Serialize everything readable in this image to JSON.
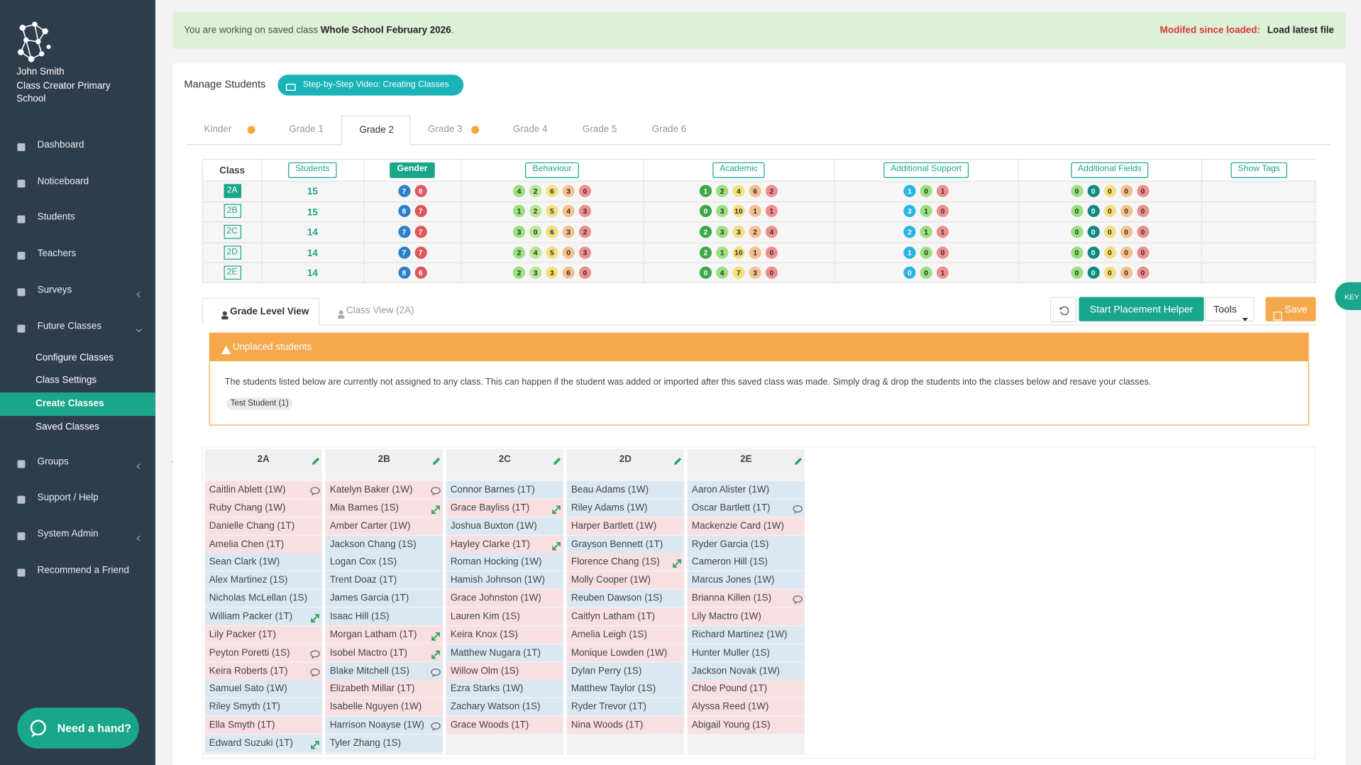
{
  "sidebar": {
    "user_name": "John Smith",
    "school": "Class Creator Primary School",
    "nav": [
      {
        "label": "Dashboard"
      },
      {
        "label": "Noticeboard"
      },
      {
        "label": "Students"
      },
      {
        "label": "Teachers"
      },
      {
        "label": "Surveys",
        "caret": "left"
      },
      {
        "label": "Future Classes",
        "caret": "down",
        "children": [
          {
            "label": "Configure Classes"
          },
          {
            "label": "Class Settings"
          },
          {
            "label": "Create Classes",
            "active": true
          },
          {
            "label": "Saved Classes"
          }
        ]
      },
      {
        "label": "Groups",
        "caret": "left"
      },
      {
        "label": "Support / Help"
      },
      {
        "label": "System Admin",
        "caret": "left"
      },
      {
        "label": "Recommend a Friend"
      }
    ],
    "help_button": "Need a hand?"
  },
  "banner": {
    "prefix": "You are working on saved class",
    "class_name": "Whole School February 2026",
    "suffix": ".",
    "status": "Modifed since loaded:",
    "action": "Load latest file"
  },
  "header": {
    "title": "Manage Students",
    "video_button": "Step-by-Step Video: Creating Classes"
  },
  "grade_tabs": [
    {
      "label": "Kinder",
      "dot": true
    },
    {
      "label": "Grade 1"
    },
    {
      "label": "Grade 2",
      "active": true
    },
    {
      "label": "Grade 3",
      "dot": true
    },
    {
      "label": "Grade 4"
    },
    {
      "label": "Grade 5"
    },
    {
      "label": "Grade 6"
    }
  ],
  "summary": {
    "columns": [
      {
        "label": "Class"
      },
      {
        "label": "Students",
        "button": true
      },
      {
        "label": "Gender",
        "button": true,
        "active": true
      },
      {
        "label": "Behaviour",
        "button": true
      },
      {
        "label": "Academic",
        "button": true
      },
      {
        "label": "Additional Support",
        "button": true
      },
      {
        "label": "Additional Fields",
        "button": true
      },
      {
        "label": "Show Tags",
        "button": true
      }
    ],
    "rows": [
      {
        "class": "2A",
        "selected": true,
        "students": 15,
        "gender": [
          7,
          8
        ],
        "behaviour": [
          4,
          2,
          6,
          3,
          0
        ],
        "academic": [
          1,
          2,
          4,
          6,
          2
        ],
        "support": [
          1,
          0,
          1
        ],
        "fields": [
          0,
          0,
          0,
          0,
          0
        ]
      },
      {
        "class": "2B",
        "students": 15,
        "gender": [
          8,
          7
        ],
        "behaviour": [
          1,
          2,
          5,
          4,
          3
        ],
        "academic": [
          0,
          3,
          10,
          1,
          1
        ],
        "support": [
          3,
          1,
          0
        ],
        "fields": [
          0,
          0,
          0,
          0,
          0
        ]
      },
      {
        "class": "2C",
        "students": 14,
        "gender": [
          7,
          7
        ],
        "behaviour": [
          3,
          0,
          6,
          3,
          2
        ],
        "academic": [
          2,
          3,
          3,
          2,
          4
        ],
        "support": [
          2,
          1,
          1
        ],
        "fields": [
          0,
          0,
          0,
          0,
          0
        ]
      },
      {
        "class": "2D",
        "students": 14,
        "gender": [
          7,
          7
        ],
        "behaviour": [
          2,
          4,
          5,
          0,
          3
        ],
        "academic": [
          2,
          1,
          10,
          1,
          0
        ],
        "support": [
          1,
          0,
          0
        ],
        "fields": [
          0,
          0,
          0,
          0,
          0
        ]
      },
      {
        "class": "2E",
        "students": 14,
        "gender": [
          8,
          6
        ],
        "behaviour": [
          2,
          3,
          3,
          6,
          0
        ],
        "academic": [
          0,
          4,
          7,
          3,
          0
        ],
        "support": [
          0,
          0,
          1
        ],
        "fields": [
          0,
          0,
          0,
          0,
          0
        ]
      }
    ]
  },
  "view_tabs": [
    {
      "label": "Grade Level View",
      "active": true
    },
    {
      "label": "Class View (2A)"
    }
  ],
  "toolbar": {
    "placement_helper": "Start Placement Helper",
    "tools": "Tools",
    "save": "Save"
  },
  "key_tab": "KEY",
  "unplaced": {
    "title": "Unplaced students",
    "message": "The students listed below are currently not assigned to any class. This can happen if the student was added or imported after this saved class was made. Simply drag & drop the students into the classes below and resave your classes.",
    "students": [
      "Test Student (1)"
    ]
  },
  "classes": [
    {
      "name": "2A",
      "students": [
        {
          "name": "Caitlin Ablett (1W)",
          "color": "#f8dfe2",
          "icon": "comment"
        },
        {
          "name": "Ruby Chang (1W)",
          "color": "#f8dfe2"
        },
        {
          "name": "Danielle Chang (1T)",
          "color": "#f8dfe2"
        },
        {
          "name": "Amelia Chen (1T)",
          "color": "#f8dfe2"
        },
        {
          "name": "Sean Clark (1W)",
          "color": "#dbe8f2"
        },
        {
          "name": "Alex Martinez (1S)",
          "color": "#dbe8f2"
        },
        {
          "name": "Nicholas McLellan (1S)",
          "color": "#dbe8f2"
        },
        {
          "name": "William Packer (1T)",
          "color": "#dbe8f2",
          "icon": "link"
        },
        {
          "name": "Lily Packer (1T)",
          "color": "#f8dfe2"
        },
        {
          "name": "Peyton Poretti (1S)",
          "color": "#f8dfe2",
          "icon": "comment"
        },
        {
          "name": "Keira Roberts (1T)",
          "color": "#f8dfe2",
          "icon": "comment"
        },
        {
          "name": "Samuel Sato (1W)",
          "color": "#dbe8f2"
        },
        {
          "name": "Riley Smyth (1T)",
          "color": "#dbe8f2"
        },
        {
          "name": "Ella Smyth (1T)",
          "color": "#f8dfe2"
        },
        {
          "name": "Edward Suzuki (1T)",
          "color": "#dbe8f2",
          "icon": "link"
        }
      ]
    },
    {
      "name": "2B",
      "students": [
        {
          "name": "Katelyn Baker (1W)",
          "color": "#f8dfe2",
          "icon": "comment"
        },
        {
          "name": "Mia Barnes (1S)",
          "color": "#f8dfe2",
          "icon": "link"
        },
        {
          "name": "Amber Carter (1W)",
          "color": "#f8dfe2"
        },
        {
          "name": "Jackson Chang (1S)",
          "color": "#dbe8f2"
        },
        {
          "name": "Logan Cox (1S)",
          "color": "#dbe8f2"
        },
        {
          "name": "Trent Doaz (1T)",
          "color": "#dbe8f2"
        },
        {
          "name": "James Garcia (1T)",
          "color": "#dbe8f2"
        },
        {
          "name": "Isaac Hill (1S)",
          "color": "#dbe8f2"
        },
        {
          "name": "Morgan Latham (1T)",
          "color": "#f8dfe2",
          "icon": "link"
        },
        {
          "name": "Isobel Mactro (1T)",
          "color": "#f8dfe2",
          "icon": "link"
        },
        {
          "name": "Blake Mitchell (1S)",
          "color": "#dbe8f2",
          "icon": "comment"
        },
        {
          "name": "Elizabeth Millar (1T)",
          "color": "#f8dfe2"
        },
        {
          "name": "Isabelle Nguyen (1W)",
          "color": "#f8dfe2"
        },
        {
          "name": "Harrison Noayse (1W)",
          "color": "#dbe8f2",
          "icon": "comment"
        },
        {
          "name": "Tyler Zhang (1S)",
          "color": "#dbe8f2"
        }
      ]
    },
    {
      "name": "2C",
      "students": [
        {
          "name": "Connor Barnes (1T)",
          "color": "#dbe8f2"
        },
        {
          "name": "Grace Bayliss (1T)",
          "color": "#f8dfe2",
          "icon": "link"
        },
        {
          "name": "Joshua Buxton (1W)",
          "color": "#dbe8f2"
        },
        {
          "name": "Hayley Clarke (1T)",
          "color": "#f8dfe2",
          "icon": "link"
        },
        {
          "name": "Roman Hocking (1W)",
          "color": "#dbe8f2"
        },
        {
          "name": "Hamish Johnson (1W)",
          "color": "#dbe8f2"
        },
        {
          "name": "Grace Johnston (1W)",
          "color": "#f8dfe2"
        },
        {
          "name": "Lauren Kim (1S)",
          "color": "#f8dfe2"
        },
        {
          "name": "Keira Knox (1S)",
          "color": "#f8dfe2"
        },
        {
          "name": "Matthew Nugara (1T)",
          "color": "#dbe8f2"
        },
        {
          "name": "Willow Olm (1S)",
          "color": "#f8dfe2"
        },
        {
          "name": "Ezra Starks (1W)",
          "color": "#dbe8f2"
        },
        {
          "name": "Zachary Watson (1S)",
          "color": "#dbe8f2"
        },
        {
          "name": "Grace Woods (1T)",
          "color": "#f8dfe2"
        }
      ]
    },
    {
      "name": "2D",
      "students": [
        {
          "name": "Beau Adams (1W)",
          "color": "#dbe8f2"
        },
        {
          "name": "Riley Adams (1W)",
          "color": "#dbe8f2"
        },
        {
          "name": "Harper Bartlett (1W)",
          "color": "#f8dfe2"
        },
        {
          "name": "Grayson Bennett (1T)",
          "color": "#dbe8f2"
        },
        {
          "name": "Florence Chang (1S)",
          "color": "#f8dfe2",
          "icon": "link"
        },
        {
          "name": "Molly Cooper (1W)",
          "color": "#f8dfe2"
        },
        {
          "name": "Reuben Dawson (1S)",
          "color": "#dbe8f2"
        },
        {
          "name": "Caitlyn Latham (1T)",
          "color": "#f8dfe2"
        },
        {
          "name": "Amelia Leigh (1S)",
          "color": "#f8dfe2"
        },
        {
          "name": "Monique Lowden (1W)",
          "color": "#f8dfe2"
        },
        {
          "name": "Dylan Perry (1S)",
          "color": "#dbe8f2"
        },
        {
          "name": "Matthew Taylor (1S)",
          "color": "#dbe8f2"
        },
        {
          "name": "Ryder Trevor (1T)",
          "color": "#dbe8f2"
        },
        {
          "name": "Nina Woods (1T)",
          "color": "#f8dfe2"
        }
      ]
    },
    {
      "name": "2E",
      "students": [
        {
          "name": "Aaron Alister (1W)",
          "color": "#dbe8f2"
        },
        {
          "name": "Oscar Bartlett (1T)",
          "color": "#dbe8f2",
          "icon": "comment"
        },
        {
          "name": "Mackenzie Card (1W)",
          "color": "#f8dfe2"
        },
        {
          "name": "Ryder Garcia (1S)",
          "color": "#dbe8f2"
        },
        {
          "name": "Cameron Hill (1S)",
          "color": "#dbe8f2"
        },
        {
          "name": "Marcus Jones (1W)",
          "color": "#dbe8f2"
        },
        {
          "name": "Brianna Killen (1S)",
          "color": "#f8dfe2",
          "icon": "comment"
        },
        {
          "name": "Lily Mactro (1W)",
          "color": "#f8dfe2"
        },
        {
          "name": "Richard Martinez (1W)",
          "color": "#dbe8f2"
        },
        {
          "name": "Hunter Muller (1S)",
          "color": "#dbe8f2"
        },
        {
          "name": "Jackson Novak (1W)",
          "color": "#dbe8f2"
        },
        {
          "name": "Chloe Pound (1T)",
          "color": "#f8dfe2"
        },
        {
          "name": "Alyssa Reed (1W)",
          "color": "#f8dfe2"
        },
        {
          "name": "Abigail Young (1S)",
          "color": "#f8dfe2"
        }
      ]
    }
  ]
}
